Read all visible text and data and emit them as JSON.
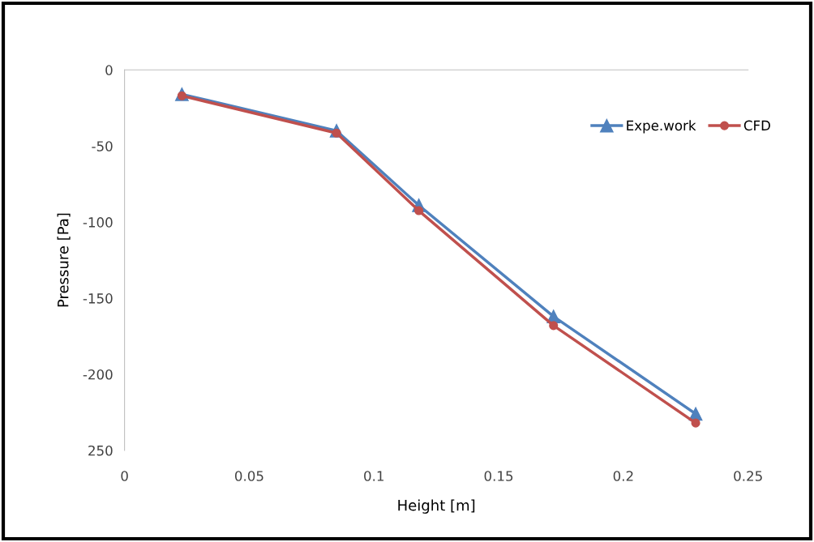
{
  "chart_data": {
    "type": "line",
    "xlabel": "Height [m]",
    "ylabel": "Pressure [Pa]",
    "xlim": [
      0,
      0.25
    ],
    "xticks": [
      0,
      0.05,
      0.1,
      0.15,
      0.2,
      0.25
    ],
    "ylim": [
      -250,
      0
    ],
    "yticks": [
      0,
      -50,
      -100,
      -150,
      -200,
      {
        "value": -250,
        "label": "250"
      }
    ],
    "grid": false,
    "legend": "top right",
    "line_style": "solid",
    "series": [
      {
        "name": "Expe.work",
        "color": "#4f81bd",
        "marker": "triangle",
        "x": [
          0.023,
          0.085,
          0.118,
          0.172,
          0.229
        ],
        "values": [
          -16,
          -40,
          -89,
          -162,
          -226
        ]
      },
      {
        "name": "CFD",
        "color": "#c0504d",
        "marker": "circle",
        "x": [
          0.023,
          0.085,
          0.118,
          0.172,
          0.229
        ],
        "values": [
          -17,
          -41.5,
          -92.5,
          -168,
          -232
        ]
      }
    ]
  }
}
